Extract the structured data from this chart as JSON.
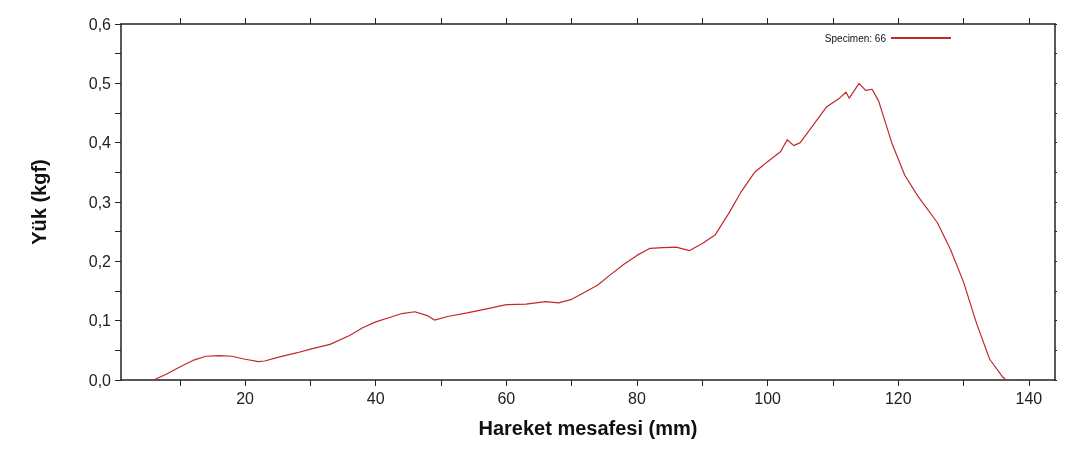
{
  "chart_data": {
    "type": "line",
    "xlabel": "Hareket mesafesi (mm)",
    "ylabel": "Yük (kgf)",
    "xlim": [
      1,
      144
    ],
    "xticks": [
      {
        "value": 10,
        "label": null
      },
      20,
      {
        "value": 30,
        "label": null
      },
      40,
      {
        "value": 50,
        "label": null
      },
      60,
      {
        "value": 70,
        "label": null
      },
      80,
      {
        "value": 90,
        "label": null
      },
      100,
      {
        "value": 110,
        "label": null
      },
      120,
      {
        "value": 130,
        "label": null
      },
      140
    ],
    "ylim": [
      0,
      0.6
    ],
    "yticks": [
      {
        "value": 0,
        "label": "0,0"
      },
      {
        "value": 0.05,
        "label": null
      },
      {
        "value": 0.1,
        "label": "0,1"
      },
      {
        "value": 0.15,
        "label": null
      },
      {
        "value": 0.2,
        "label": "0,2"
      },
      {
        "value": 0.25,
        "label": null
      },
      {
        "value": 0.3,
        "label": "0,3"
      },
      {
        "value": 0.35,
        "label": null
      },
      {
        "value": 0.4,
        "label": "0,4"
      },
      {
        "value": 0.45,
        "label": null
      },
      {
        "value": 0.5,
        "label": "0,5"
      },
      {
        "value": 0.55,
        "label": null
      },
      {
        "value": 0.6,
        "label": "0,6"
      }
    ],
    "grid": false,
    "legend": "top right",
    "marker": "none",
    "line_style": "solid",
    "series": [
      {
        "name": "Specimen: 66",
        "color": "#c0282c",
        "x": [
          6,
          8,
          10,
          12,
          14,
          16,
          18,
          20,
          22,
          23,
          25,
          28,
          30,
          33,
          36,
          38,
          40,
          42,
          44,
          46,
          48,
          49,
          51,
          54,
          57,
          60,
          63,
          66,
          68,
          70,
          72,
          74,
          76,
          78,
          80,
          82,
          84,
          86,
          88,
          90,
          92,
          94,
          96,
          98,
          100,
          102,
          103,
          104,
          105,
          107,
          109,
          111,
          112,
          112.5,
          114,
          115,
          116,
          117,
          119,
          121,
          123,
          126,
          128,
          130,
          132,
          134,
          136,
          136.5
        ],
        "values": [
          0,
          0.01,
          0.022,
          0.033,
          0.04,
          0.041,
          0.04,
          0.035,
          0.031,
          0.032,
          0.038,
          0.046,
          0.052,
          0.06,
          0.075,
          0.088,
          0.098,
          0.105,
          0.112,
          0.115,
          0.108,
          0.101,
          0.107,
          0.113,
          0.12,
          0.127,
          0.128,
          0.132,
          0.13,
          0.136,
          0.148,
          0.16,
          0.178,
          0.195,
          0.21,
          0.222,
          0.223,
          0.224,
          0.218,
          0.23,
          0.245,
          0.28,
          0.318,
          0.35,
          0.368,
          0.385,
          0.405,
          0.395,
          0.4,
          0.43,
          0.46,
          0.475,
          0.485,
          0.475,
          0.5,
          0.488,
          0.49,
          0.47,
          0.4,
          0.345,
          0.31,
          0.265,
          0.22,
          0.165,
          0.095,
          0.035,
          0.005,
          0
        ]
      }
    ]
  }
}
